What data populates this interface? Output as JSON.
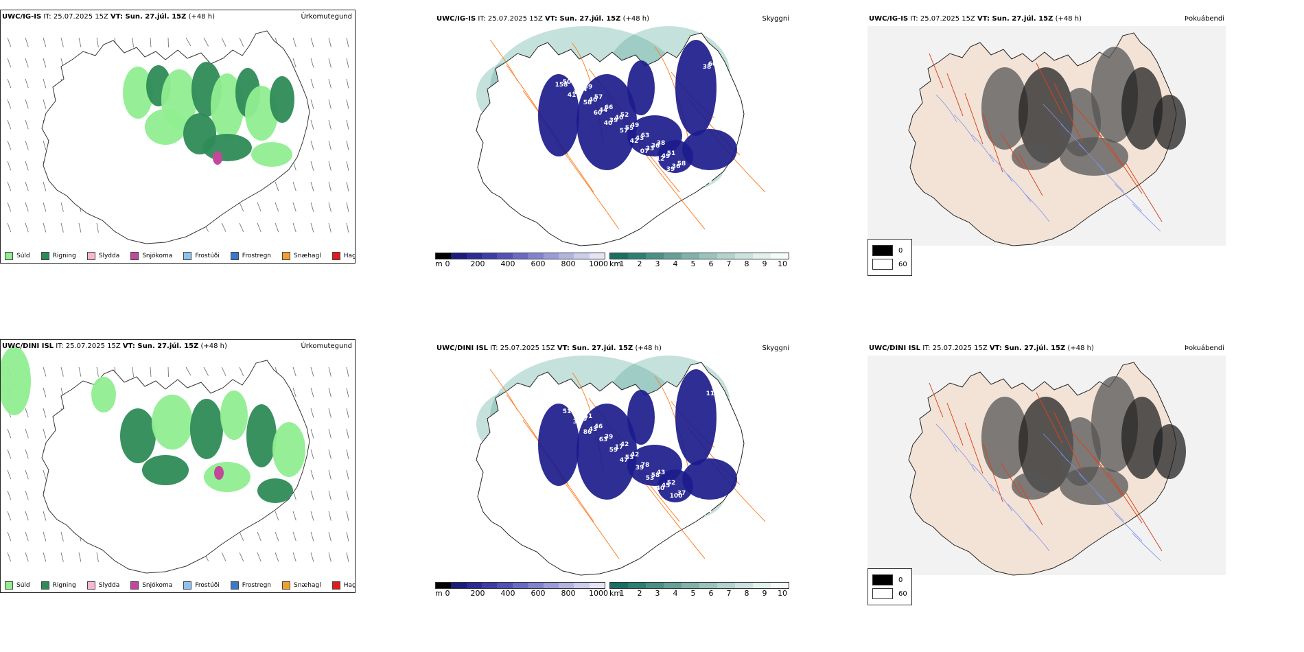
{
  "rows": [
    {
      "precip": {
        "model": "UWC/IG-IS",
        "it_label": "IT: 25.07.2025 15Z",
        "vt_label": "VT: Sun. 27.júl. 15Z",
        "lead": "(+48 h)",
        "right_label": "Úrkomutegund"
      },
      "cloud": {
        "model": "UWC/IG-IS",
        "it_label": "IT: 25.07.2025 15Z",
        "vt_label": "VT: Sun. 27.júl. 15Z",
        "lead": "(+48 h)",
        "right_label": "Skyggni",
        "labels": [
          "52",
          "39",
          "52",
          "38",
          "42",
          "48",
          "57",
          "49",
          "51",
          "50",
          "44",
          "66",
          "63",
          "58",
          "43",
          "44",
          "40",
          "36",
          "30",
          "38",
          "40",
          "55",
          "49",
          "45",
          "50",
          "44",
          "43",
          "36",
          "60",
          "49",
          "39",
          "33",
          "67",
          "71",
          "58",
          "57",
          "12",
          "85",
          "158",
          "60",
          "42",
          "39",
          "38",
          "41",
          "40",
          "07"
        ]
      },
      "fog": {
        "model": "UWC/IG-IS",
        "it_label": "IT: 25.07.2025 15Z",
        "vt_label": "VT: Sun. 27.júl. 15Z",
        "lead": "(+48 h)",
        "right_label": "Þokuábendi"
      }
    },
    {
      "precip": {
        "model": "UWC/DINI ISL",
        "it_label": "IT: 25.07.2025 15Z",
        "vt_label": "VT: Sun. 27.júl. 15Z",
        "lead": "(+48 h)",
        "right_label": "Úrkomutegund"
      },
      "cloud": {
        "model": "UWC/DINI ISL",
        "it_label": "IT: 25.07.2025 15Z",
        "vt_label": "VT: Sun. 27.júl. 15Z",
        "lead": "(+48 h)",
        "right_label": "Skyggni",
        "labels": [
          "45",
          "41",
          "42",
          "43",
          "33",
          "31",
          "46",
          "42",
          "52",
          "34",
          "33",
          "39",
          "78",
          "37",
          "36",
          "30",
          "17",
          "58",
          "45",
          "53",
          "43",
          "53",
          "45",
          "41",
          "51",
          "63",
          "39",
          "100",
          "116",
          "34",
          "59",
          "53",
          "41",
          "48",
          "86",
          "47",
          "40",
          "35"
        ]
      },
      "fog": {
        "model": "UWC/DINI ISL",
        "it_label": "IT: 25.07.2025 15Z",
        "vt_label": "VT: Sun. 27.júl. 15Z",
        "lead": "(+48 h)",
        "right_label": "Þokuábendi"
      }
    }
  ],
  "precip_legend": [
    {
      "label": "Súld",
      "color": "#90ee90"
    },
    {
      "label": "Rigning",
      "color": "#2e8b57"
    },
    {
      "label": "Slydda",
      "color": "#f7b6d2"
    },
    {
      "label": "Snjókoma",
      "color": "#c2489a"
    },
    {
      "label": "Frostúði",
      "color": "#8ec1ee"
    },
    {
      "label": "Frostregn",
      "color": "#3a78c9"
    },
    {
      "label": "Snæhagl",
      "color": "#f0a030"
    },
    {
      "label": "Haglél",
      "color": "#e31a1c"
    }
  ],
  "cbar_height": {
    "unit": "m",
    "ticks": [
      "0",
      "200",
      "400",
      "600",
      "800",
      "1000"
    ],
    "colors": [
      "#000000",
      "#1c1c7a",
      "#2b2b95",
      "#3d3da6",
      "#5252b5",
      "#6a6ac2",
      "#8282cd",
      "#9b9bd8",
      "#b4b4e2",
      "#ccccec",
      "#e4e4f5"
    ]
  },
  "cbar_vis": {
    "unit": "km",
    "ticks": [
      "1",
      "2",
      "3",
      "4",
      "5",
      "6",
      "7",
      "8",
      "9",
      "10"
    ],
    "colors": [
      "#1a6f63",
      "#2e7f72",
      "#4a9085",
      "#66a198",
      "#80b2a9",
      "#9ac3bb",
      "#b3d3cd",
      "#cbe2de",
      "#e2f0ee",
      "#f5fbfa"
    ]
  },
  "fog_key": {
    "black_label": "0",
    "white_label": "60"
  },
  "colors": {
    "land_fill": "#f3e3d6",
    "road": "#ff7f24",
    "river": "#7b8ff0",
    "cloud_core": "#1c1c8c",
    "teal": "#5aa89c"
  }
}
